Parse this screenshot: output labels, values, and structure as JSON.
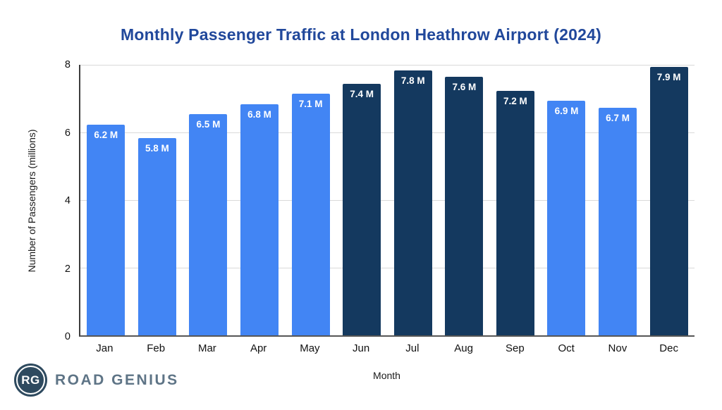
{
  "title": "Monthly Passenger Traffic at London Heathrow Airport (2024)",
  "title_color": "#21489B",
  "chart_data": {
    "type": "bar",
    "title": "Monthly Passenger Traffic at London Heathrow Airport (2024)",
    "xlabel": "Month",
    "ylabel": "Number of Passengers (millions)",
    "categories": [
      "Jan",
      "Feb",
      "Mar",
      "Apr",
      "May",
      "Jun",
      "Jul",
      "Aug",
      "Sep",
      "Oct",
      "Nov",
      "Dec"
    ],
    "values": [
      6.2,
      5.8,
      6.5,
      6.8,
      7.1,
      7.4,
      7.8,
      7.6,
      7.2,
      6.9,
      6.7,
      7.9
    ],
    "value_labels": [
      "6.2 M",
      "5.8 M",
      "6.5 M",
      "6.8 M",
      "7.1 M",
      "7.4 M",
      "7.8 M",
      "7.6 M",
      "7.2 M",
      "6.9 M",
      "6.7 M",
      "7.9 M"
    ],
    "bar_color_keys": [
      "light",
      "light",
      "light",
      "light",
      "light",
      "dark",
      "dark",
      "dark",
      "dark",
      "light",
      "light",
      "dark"
    ],
    "colors": {
      "light": "#4285F4",
      "dark": "#14395F"
    },
    "ylim": [
      0,
      8
    ],
    "yticks": [
      0,
      2,
      4,
      6,
      8
    ],
    "grid": "horizontal",
    "gridline_color": "#d9d9d9",
    "legend": "none"
  },
  "logo": {
    "monogram": "RG",
    "name": "ROAD GENIUS",
    "circle_color": "#2E4A5F",
    "text_color": "#5E7486"
  }
}
